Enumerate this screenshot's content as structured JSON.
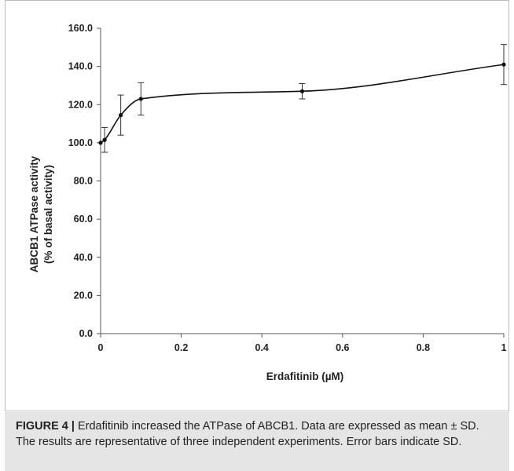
{
  "chart_data": {
    "type": "line",
    "title": "",
    "xlabel": "Erdafitinib (µM)",
    "ylabel_line1": "ABCB1 ATPase activity",
    "ylabel_line2": "(% of basal activity)",
    "xlim": [
      0,
      1
    ],
    "ylim": [
      0,
      160
    ],
    "xticks": [
      0,
      0.2,
      0.4,
      0.6,
      0.8,
      1
    ],
    "xtick_labels": [
      "0",
      "0.2",
      "0.4",
      "0.6",
      "0.8",
      "1"
    ],
    "yticks": [
      0,
      20,
      40,
      60,
      80,
      100,
      120,
      140,
      160
    ],
    "ytick_labels": [
      "0.0",
      "20.0",
      "40.0",
      "60.0",
      "80.0",
      "100.0",
      "120.0",
      "140.0",
      "160.0"
    ],
    "grid": false,
    "legend": "none",
    "smooth": true,
    "series": [
      {
        "x": [
          0,
          0.01,
          0.05,
          0.1,
          0.5,
          1
        ],
        "y": [
          100,
          101.5,
          114.5,
          123,
          127,
          141
        ],
        "error": [
          0,
          6.5,
          10.5,
          8.5,
          4,
          10.5
        ]
      }
    ]
  },
  "caption": {
    "label": "FIGURE 4 |",
    "text": " Erdafitinib increased the ATPase of ABCB1. Data are expressed as mean ± SD. The results are representative of three independent experiments. Error bars indicate SD."
  }
}
